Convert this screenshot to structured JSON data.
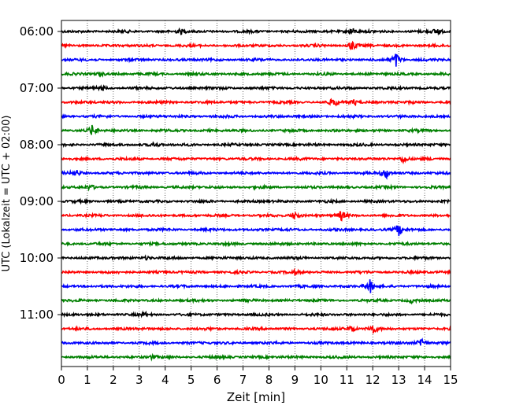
{
  "chart_data": {
    "type": "line",
    "title": "",
    "xlabel": "Zeit  [min]",
    "ylabel": "UTC (Lokalzeit = UTC + 02:00)",
    "xlim": [
      0,
      15
    ],
    "x_ticks": [
      0,
      1,
      2,
      3,
      4,
      5,
      6,
      7,
      8,
      9,
      10,
      11,
      12,
      13,
      14,
      15
    ],
    "y_ticks": [
      "06:00",
      "07:00",
      "08:00",
      "09:00",
      "10:00",
      "11:00"
    ],
    "trace_interval_minutes": 15,
    "first_trace": "06:00",
    "trace_count": 24,
    "trace_colors": [
      "#000000",
      "#ff0000",
      "#0000ff",
      "#008000"
    ],
    "grid": "vertical dotted at each minute",
    "events": [
      {
        "trace": "06:00",
        "minute": 4.6,
        "amplitude": 0.5
      },
      {
        "trace": "06:00",
        "minute": 11.2,
        "amplitude": 0.8
      },
      {
        "trace": "06:00",
        "minute": 14.5,
        "amplitude": 0.9
      },
      {
        "trace": "06:15",
        "minute": 11.2,
        "amplitude": 1.1
      },
      {
        "trace": "06:30",
        "minute": 12.9,
        "amplitude": 1.6
      },
      {
        "trace": "06:45",
        "minute": 1.5,
        "amplitude": 0.4
      },
      {
        "trace": "07:00",
        "minute": 1.6,
        "amplitude": 0.4
      },
      {
        "trace": "07:15",
        "minute": 10.5,
        "amplitude": 0.9
      },
      {
        "trace": "07:15",
        "minute": 11.3,
        "amplitude": 0.6
      },
      {
        "trace": "07:45",
        "minute": 1.2,
        "amplitude": 1.2
      },
      {
        "trace": "08:00",
        "minute": 3.6,
        "amplitude": 0.5
      },
      {
        "trace": "08:15",
        "minute": 13.2,
        "amplitude": 0.9
      },
      {
        "trace": "08:30",
        "minute": 12.5,
        "amplitude": 1.3
      },
      {
        "trace": "08:30",
        "minute": 0.6,
        "amplitude": 0.5
      },
      {
        "trace": "08:45",
        "minute": 1.1,
        "amplitude": 0.5
      },
      {
        "trace": "09:15",
        "minute": 9.0,
        "amplitude": 0.9
      },
      {
        "trace": "09:15",
        "minute": 10.8,
        "amplitude": 1.1
      },
      {
        "trace": "09:30",
        "minute": 13.0,
        "amplitude": 1.4
      },
      {
        "trace": "10:00",
        "minute": 3.3,
        "amplitude": 0.4
      },
      {
        "trace": "10:15",
        "minute": 9.0,
        "amplitude": 0.5
      },
      {
        "trace": "10:30",
        "minute": 11.9,
        "amplitude": 1.4
      },
      {
        "trace": "10:45",
        "minute": 13.5,
        "amplitude": 0.4
      },
      {
        "trace": "11:00",
        "minute": 3.2,
        "amplitude": 0.4
      },
      {
        "trace": "11:15",
        "minute": 11.2,
        "amplitude": 0.8
      },
      {
        "trace": "11:15",
        "minute": 12.0,
        "amplitude": 1.0
      },
      {
        "trace": "11:30",
        "minute": 13.9,
        "amplitude": 1.3
      },
      {
        "trace": "11:45",
        "minute": 3.5,
        "amplitude": 0.4
      }
    ]
  }
}
